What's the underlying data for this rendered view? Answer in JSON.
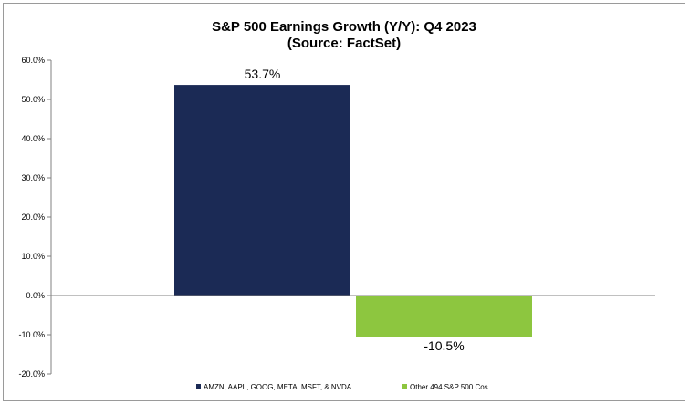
{
  "chart_data": {
    "type": "bar",
    "title": "S&P 500 Earnings Growth (Y/Y): Q4 2023",
    "subtitle": "(Source: FactSet)",
    "xlabel": "",
    "ylabel": "",
    "ylim": [
      -20,
      60
    ],
    "ytick_step": 10,
    "ytick_labels": [
      "60.0%",
      "50.0%",
      "40.0%",
      "30.0%",
      "20.0%",
      "10.0%",
      "0.0%",
      "-10.0%",
      "-20.0%"
    ],
    "grid": false,
    "legend_position": "bottom-center",
    "series": [
      {
        "name": "AMZN, AAPL, GOOG, META, MSFT, & NVDA",
        "value": 53.7,
        "label": "53.7%",
        "color": "#1b2a55"
      },
      {
        "name": "Other 494 S&P 500 Cos.",
        "value": -10.5,
        "label": "-10.5%",
        "color": "#8dc63f"
      }
    ]
  }
}
